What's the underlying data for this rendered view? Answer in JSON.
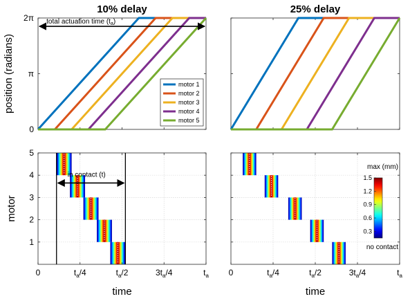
{
  "chart_data": [
    {
      "type": "line",
      "panel": "top-left",
      "title": "10% delay",
      "ylabel": "position (radians)",
      "xlabel": "",
      "xlim": [
        0,
        1
      ],
      "ylim": [
        0,
        2
      ],
      "yticks": [
        {
          "v": 0,
          "label": "0"
        },
        {
          "v": 1,
          "label": "π"
        },
        {
          "v": 2,
          "label": "2π"
        }
      ],
      "grid": false,
      "legend_position": "lower-right",
      "series": [
        {
          "name": "motor 1",
          "color": "#0072BD",
          "x": [
            0,
            0.0,
            0.6,
            1.0
          ],
          "y": [
            0,
            0,
            2,
            2
          ]
        },
        {
          "name": "motor 2",
          "color": "#D95319",
          "x": [
            0,
            0.1,
            0.7,
            1.0
          ],
          "y": [
            0,
            0,
            2,
            2
          ]
        },
        {
          "name": "motor 3",
          "color": "#EDB120",
          "x": [
            0,
            0.2,
            0.8,
            1.0
          ],
          "y": [
            0,
            0,
            2,
            2
          ]
        },
        {
          "name": "motor 4",
          "color": "#7E2F8E",
          "x": [
            0,
            0.3,
            0.9,
            1.0
          ],
          "y": [
            0,
            0,
            2,
            2
          ]
        },
        {
          "name": "motor 5",
          "color": "#77AC30",
          "x": [
            0,
            0.4,
            1.0
          ],
          "y": [
            0,
            0,
            2
          ]
        }
      ],
      "annotation": {
        "text": "total actuation time (t_a)",
        "y": 1.85,
        "x_from": 0,
        "x_to": 1
      }
    },
    {
      "type": "line",
      "panel": "top-right",
      "title": "25% delay",
      "xlim": [
        0,
        1
      ],
      "ylim": [
        0,
        2
      ],
      "grid": false,
      "series": [
        {
          "color": "#0072BD",
          "x": [
            0,
            0.0,
            0.4,
            1.0
          ],
          "y": [
            0,
            0,
            2,
            2
          ]
        },
        {
          "color": "#D95319",
          "x": [
            0,
            0.15,
            0.55,
            1.0
          ],
          "y": [
            0,
            0,
            2,
            2
          ]
        },
        {
          "color": "#EDB120",
          "x": [
            0,
            0.3,
            0.7,
            1.0
          ],
          "y": [
            0,
            0,
            2,
            2
          ]
        },
        {
          "color": "#7E2F8E",
          "x": [
            0,
            0.45,
            0.85,
            1.0
          ],
          "y": [
            0,
            0,
            2,
            2
          ]
        },
        {
          "color": "#77AC30",
          "x": [
            0,
            0.6,
            1.0
          ],
          "y": [
            0,
            0,
            2
          ]
        }
      ]
    },
    {
      "type": "heatmap",
      "panel": "bottom-left",
      "xlabel": "time",
      "ylabel": "motor",
      "xlim": [
        0,
        1
      ],
      "ylim": [
        0,
        5
      ],
      "yticks": [
        1,
        2,
        3,
        4,
        5
      ],
      "xticks": [
        {
          "v": 0,
          "pre": "0",
          "sub": "",
          "post": ""
        },
        {
          "v": 0.25,
          "pre": "t",
          "sub": "a",
          "post": "/4"
        },
        {
          "v": 0.5,
          "pre": "t",
          "sub": "a",
          "post": "/2"
        },
        {
          "v": 0.75,
          "pre": "3t",
          "sub": "a",
          "post": "/4"
        },
        {
          "v": 1,
          "pre": "t",
          "sub": "a",
          "post": ""
        }
      ],
      "grid": true,
      "contact_blocks": [
        {
          "motor": 5,
          "x0": 0.11,
          "x1": 0.2
        },
        {
          "motor": 4,
          "x0": 0.19,
          "x1": 0.28
        },
        {
          "motor": 3,
          "x0": 0.27,
          "x1": 0.36
        },
        {
          "motor": 2,
          "x0": 0.35,
          "x1": 0.44
        },
        {
          "motor": 1,
          "x0": 0.43,
          "x1": 0.52
        }
      ],
      "contact_span": {
        "x0": 0.11,
        "x1": 0.52
      },
      "annotation": {
        "text": "in contact (t)",
        "y": 3.65
      }
    },
    {
      "type": "heatmap",
      "panel": "bottom-right",
      "xlabel": "time",
      "xlim": [
        0,
        1
      ],
      "ylim": [
        0,
        5
      ],
      "xticks": [
        {
          "v": 0,
          "pre": "0",
          "sub": "",
          "post": ""
        },
        {
          "v": 0.25,
          "pre": "t",
          "sub": "a",
          "post": "/4"
        },
        {
          "v": 0.5,
          "pre": "t",
          "sub": "a",
          "post": "/2"
        },
        {
          "v": 0.75,
          "pre": "3t",
          "sub": "a",
          "post": "/4"
        },
        {
          "v": 1,
          "pre": "t",
          "sub": "a",
          "post": ""
        }
      ],
      "grid": true,
      "contact_blocks": [
        {
          "motor": 5,
          "x0": 0.07,
          "x1": 0.15
        },
        {
          "motor": 4,
          "x0": 0.2,
          "x1": 0.28
        },
        {
          "motor": 3,
          "x0": 0.34,
          "x1": 0.42
        },
        {
          "motor": 2,
          "x0": 0.47,
          "x1": 0.55
        },
        {
          "motor": 1,
          "x0": 0.6,
          "x1": 0.68
        }
      ],
      "colorbar": {
        "title": "max (mm)",
        "range": [
          0.15,
          1.5
        ],
        "ticks": [
          "0.3",
          "0.6",
          "0.9",
          "1.2",
          "1.5"
        ],
        "tick_values": [
          0.3,
          0.6,
          0.9,
          1.2,
          1.5
        ],
        "below_label": "no contact"
      }
    }
  ]
}
